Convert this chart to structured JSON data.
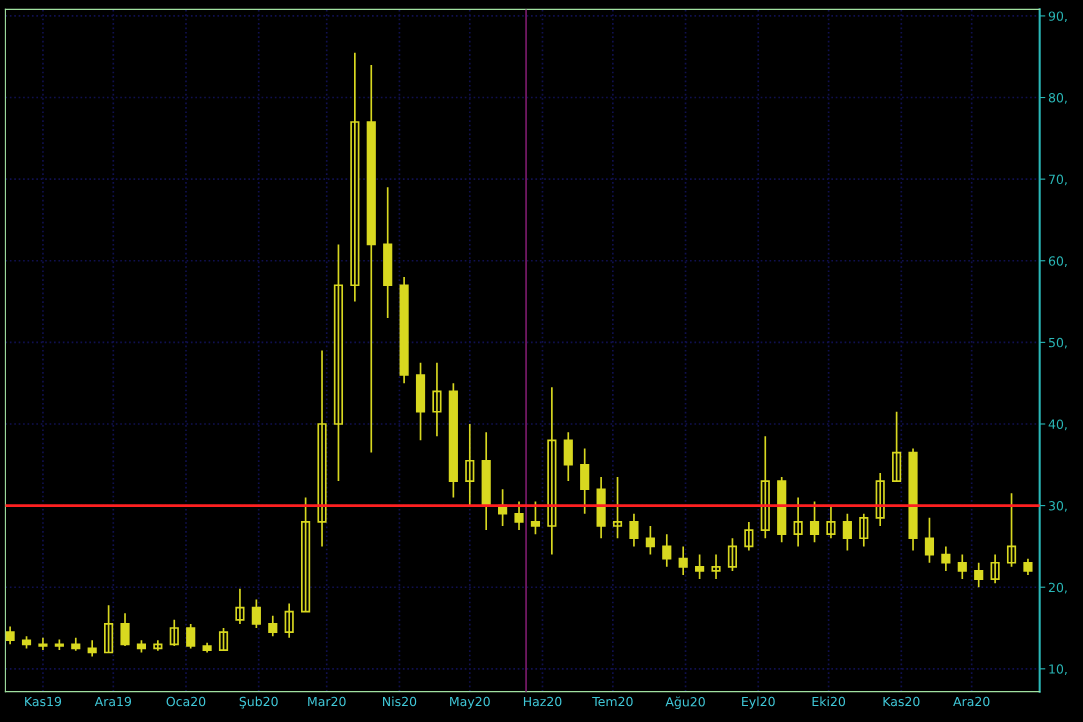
{
  "chart_data": {
    "type": "candlestick",
    "color": "#d8d820",
    "x": [
      "2019-10-18",
      "2019-10-25",
      "2019-11-01",
      "2019-11-08",
      "2019-11-15",
      "2019-11-22",
      "2019-11-29",
      "2019-12-06",
      "2019-12-13",
      "2019-12-20",
      "2019-12-27",
      "2020-01-03",
      "2020-01-10",
      "2020-01-17",
      "2020-01-24",
      "2020-01-31",
      "2020-02-07",
      "2020-02-14",
      "2020-02-21",
      "2020-02-28",
      "2020-03-06",
      "2020-03-13",
      "2020-03-20",
      "2020-03-27",
      "2020-04-03",
      "2020-04-10",
      "2020-04-17",
      "2020-04-24",
      "2020-05-01",
      "2020-05-08",
      "2020-05-15",
      "2020-05-22",
      "2020-05-29",
      "2020-06-05",
      "2020-06-12",
      "2020-06-19",
      "2020-06-26",
      "2020-07-03",
      "2020-07-10",
      "2020-07-17",
      "2020-07-24",
      "2020-07-31",
      "2020-08-07",
      "2020-08-14",
      "2020-08-21",
      "2020-08-28",
      "2020-09-04",
      "2020-09-11",
      "2020-09-18",
      "2020-09-25",
      "2020-10-02",
      "2020-10-09",
      "2020-10-16",
      "2020-10-23",
      "2020-10-30",
      "2020-11-06",
      "2020-11-13",
      "2020-11-20",
      "2020-11-27",
      "2020-12-04",
      "2020-12-11",
      "2020-12-18",
      "2020-12-25"
    ],
    "ohlc": [
      [
        14.5,
        15.2,
        13.0,
        13.5
      ],
      [
        13.5,
        14.0,
        12.5,
        13.0
      ],
      [
        13.0,
        13.8,
        12.3,
        12.8
      ],
      [
        12.8,
        13.6,
        12.3,
        13.0
      ],
      [
        13.0,
        13.8,
        12.2,
        12.5
      ],
      [
        12.5,
        13.5,
        11.5,
        12.0
      ],
      [
        12.0,
        17.8,
        12.0,
        15.5
      ],
      [
        15.5,
        16.8,
        12.8,
        13.0
      ],
      [
        13.0,
        13.5,
        12.0,
        12.5
      ],
      [
        12.5,
        13.5,
        12.2,
        13.0
      ],
      [
        13.0,
        16.0,
        12.8,
        15.0
      ],
      [
        15.0,
        15.5,
        12.5,
        12.8
      ],
      [
        12.8,
        13.2,
        12.0,
        12.3
      ],
      [
        12.3,
        15.0,
        12.2,
        14.5
      ],
      [
        16.0,
        19.8,
        15.5,
        17.5
      ],
      [
        17.5,
        18.5,
        15.0,
        15.5
      ],
      [
        15.5,
        16.5,
        14.0,
        14.5
      ],
      [
        14.5,
        18.0,
        13.8,
        17.0
      ],
      [
        17.0,
        31.0,
        17.0,
        28.0
      ],
      [
        28.0,
        49.0,
        25.0,
        40.0
      ],
      [
        40.0,
        62.0,
        33.0,
        57.0
      ],
      [
        57.0,
        85.5,
        55.0,
        77.0
      ],
      [
        77.0,
        84.0,
        36.5,
        62.0
      ],
      [
        62.0,
        69.0,
        53.0,
        57.0
      ],
      [
        57.0,
        58.0,
        45.0,
        46.0
      ],
      [
        46.0,
        47.5,
        38.0,
        41.5
      ],
      [
        41.5,
        47.5,
        38.5,
        44.0
      ],
      [
        44.0,
        45.0,
        31.0,
        33.0
      ],
      [
        33.0,
        40.0,
        30.0,
        35.5
      ],
      [
        35.5,
        39.0,
        27.0,
        30.0
      ],
      [
        30.0,
        32.0,
        27.5,
        29.0
      ],
      [
        29.0,
        30.5,
        27.0,
        28.0
      ],
      [
        28.0,
        30.5,
        26.5,
        27.5
      ],
      [
        27.5,
        44.5,
        24.0,
        38.0
      ],
      [
        38.0,
        39.0,
        33.0,
        35.0
      ],
      [
        35.0,
        37.0,
        29.0,
        32.0
      ],
      [
        32.0,
        33.5,
        26.0,
        27.5
      ],
      [
        27.5,
        33.5,
        26.0,
        28.0
      ],
      [
        28.0,
        29.0,
        25.0,
        26.0
      ],
      [
        26.0,
        27.5,
        24.0,
        25.0
      ],
      [
        25.0,
        26.5,
        22.5,
        23.5
      ],
      [
        23.5,
        25.0,
        21.5,
        22.5
      ],
      [
        22.5,
        24.0,
        21.0,
        22.0
      ],
      [
        22.0,
        24.0,
        21.0,
        22.5
      ],
      [
        22.5,
        26.0,
        22.0,
        25.0
      ],
      [
        25.0,
        28.0,
        24.5,
        27.0
      ],
      [
        27.0,
        38.5,
        26.0,
        33.0
      ],
      [
        33.0,
        33.5,
        25.5,
        26.5
      ],
      [
        26.5,
        31.0,
        25.0,
        28.0
      ],
      [
        28.0,
        30.5,
        25.5,
        26.5
      ],
      [
        26.5,
        30.0,
        26.0,
        28.0
      ],
      [
        28.0,
        29.0,
        24.5,
        26.0
      ],
      [
        26.0,
        29.0,
        25.0,
        28.5
      ],
      [
        28.5,
        34.0,
        27.5,
        33.0
      ],
      [
        33.0,
        41.5,
        33.0,
        36.5
      ],
      [
        36.5,
        37.0,
        24.5,
        26.0
      ],
      [
        26.0,
        28.5,
        23.0,
        24.0
      ],
      [
        24.0,
        25.0,
        22.0,
        23.0
      ],
      [
        23.0,
        24.0,
        21.0,
        22.0
      ],
      [
        22.0,
        23.0,
        20.0,
        21.0
      ],
      [
        21.0,
        24.0,
        20.5,
        23.0
      ],
      [
        23.0,
        31.5,
        22.5,
        25.0
      ],
      [
        23.0,
        23.5,
        21.5,
        22.0
      ]
    ],
    "xlim": [
      "2019-10-16",
      "2020-12-30"
    ],
    "xticks": [
      {
        "value": "2019-11-01",
        "label": "Kas19"
      },
      {
        "value": "2019-12-01",
        "label": "Ara19"
      },
      {
        "value": "2020-01-01",
        "label": "Oca20"
      },
      {
        "value": "2020-02-01",
        "label": "Şub20"
      },
      {
        "value": "2020-03-01",
        "label": "Mar20"
      },
      {
        "value": "2020-04-01",
        "label": "Nis20"
      },
      {
        "value": "2020-05-01",
        "label": "May20"
      },
      {
        "value": "2020-06-01",
        "label": "Haz20"
      },
      {
        "value": "2020-07-01",
        "label": "Tem20"
      },
      {
        "value": "2020-08-01",
        "label": "Ağu20"
      },
      {
        "value": "2020-09-01",
        "label": "Eyl20"
      },
      {
        "value": "2020-10-01",
        "label": "Eki20"
      },
      {
        "value": "2020-11-01",
        "label": "Kas20"
      },
      {
        "value": "2020-12-01",
        "label": "Ara20"
      }
    ],
    "ylim": [
      7.2,
      90.8
    ],
    "yticks": [
      {
        "value": 10,
        "label": "10,"
      },
      {
        "value": 20,
        "label": "20,"
      },
      {
        "value": 30,
        "label": "30,"
      },
      {
        "value": 40,
        "label": "40,"
      },
      {
        "value": 50,
        "label": "50,"
      },
      {
        "value": 60,
        "label": "60,"
      },
      {
        "value": 70,
        "label": "70,"
      },
      {
        "value": 80,
        "label": "80,"
      },
      {
        "value": 90,
        "label": "90,"
      }
    ],
    "grid": true,
    "ref_lines": [
      {
        "axis": "y",
        "value": 30,
        "color": "#ff2020"
      },
      {
        "axis": "x",
        "value": "2020-05-25",
        "color": "#7a1a6a"
      }
    ]
  }
}
